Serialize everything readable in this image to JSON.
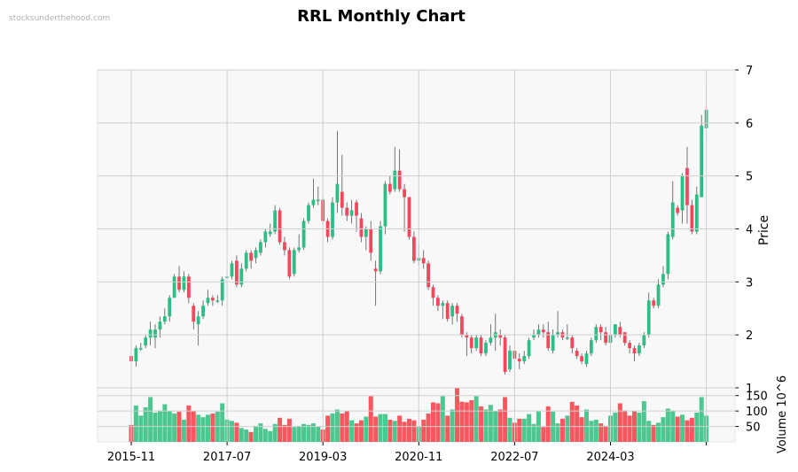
{
  "watermark": "stocksunderthehood.com",
  "chart_data": {
    "type": "candlestick",
    "title": "RRL Monthly Chart",
    "price_axis": {
      "label": "Price",
      "ticks": [
        1,
        2,
        3,
        4,
        5,
        6,
        7
      ],
      "range": [
        1,
        7
      ]
    },
    "volume_axis": {
      "label": "Volume  10^6",
      "ticks": [
        50,
        100,
        150
      ],
      "range": [
        0,
        175
      ]
    },
    "x_ticks": [
      "2015-11",
      "2017-07",
      "2019-03",
      "2020-11",
      "2022-07",
      "2024-03",
      ""
    ],
    "colors": {
      "up": "#2ebd85",
      "down": "#f6465d",
      "volume_up": "#4cc790",
      "volume_down": "#f9575f",
      "grid": "#d0d0d0",
      "bg": "#f8f8f8"
    },
    "months_from": "2015-11",
    "candles": [
      [
        1.6,
        1.5,
        1.65,
        1.45,
        55
      ],
      [
        1.5,
        1.75,
        1.8,
        1.4,
        118
      ],
      [
        1.75,
        1.75,
        1.85,
        1.7,
        85
      ],
      [
        1.8,
        1.95,
        2.0,
        1.75,
        112
      ],
      [
        1.95,
        2.1,
        2.25,
        1.8,
        145
      ],
      [
        1.95,
        2.1,
        2.2,
        1.75,
        95
      ],
      [
        2.1,
        2.25,
        2.35,
        1.95,
        102
      ],
      [
        2.25,
        2.35,
        2.5,
        2.2,
        122
      ],
      [
        2.35,
        2.7,
        2.75,
        2.25,
        100
      ],
      [
        2.7,
        3.1,
        3.15,
        2.7,
        92
      ],
      [
        3.1,
        2.85,
        3.3,
        2.8,
        98
      ],
      [
        2.85,
        3.1,
        3.2,
        2.8,
        72
      ],
      [
        3.1,
        2.7,
        3.15,
        2.6,
        118
      ],
      [
        2.55,
        2.25,
        2.6,
        2.1,
        100
      ],
      [
        2.2,
        2.35,
        2.45,
        1.8,
        88
      ],
      [
        2.35,
        2.55,
        2.65,
        2.3,
        80
      ],
      [
        2.6,
        2.7,
        2.85,
        2.55,
        88
      ],
      [
        2.7,
        2.65,
        2.75,
        2.55,
        92
      ],
      [
        2.65,
        2.65,
        2.75,
        2.6,
        98
      ],
      [
        2.65,
        3.05,
        3.1,
        2.55,
        125
      ],
      [
        3.1,
        3.1,
        3.15,
        3.0,
        72
      ],
      [
        3.1,
        3.35,
        3.4,
        3.05,
        68
      ],
      [
        3.4,
        2.95,
        3.5,
        2.9,
        62
      ],
      [
        2.95,
        3.25,
        3.35,
        2.9,
        45
      ],
      [
        3.25,
        3.55,
        3.6,
        3.2,
        40
      ],
      [
        3.55,
        3.4,
        3.6,
        3.25,
        32
      ],
      [
        3.45,
        3.6,
        3.65,
        3.35,
        52
      ],
      [
        3.55,
        3.75,
        3.8,
        3.5,
        60
      ],
      [
        3.75,
        3.95,
        4.0,
        3.65,
        42
      ],
      [
        3.9,
        3.95,
        4.1,
        3.85,
        35
      ],
      [
        3.95,
        4.35,
        4.45,
        3.9,
        58
      ],
      [
        4.35,
        3.75,
        4.4,
        3.7,
        78
      ],
      [
        3.75,
        3.6,
        3.85,
        3.5,
        55
      ],
      [
        3.6,
        3.1,
        3.65,
        3.05,
        75
      ],
      [
        3.15,
        3.6,
        3.65,
        3.1,
        48
      ],
      [
        3.6,
        3.65,
        3.9,
        3.55,
        52
      ],
      [
        3.65,
        4.15,
        4.2,
        3.6,
        58
      ],
      [
        4.15,
        4.45,
        4.5,
        4.1,
        55
      ],
      [
        4.45,
        4.55,
        4.95,
        4.4,
        60
      ],
      [
        4.55,
        4.55,
        4.8,
        4.45,
        50
      ],
      [
        4.55,
        4.15,
        4.6,
        4.1,
        40
      ],
      [
        4.15,
        3.85,
        4.2,
        3.75,
        85
      ],
      [
        3.85,
        4.5,
        4.6,
        3.8,
        92
      ],
      [
        4.5,
        4.85,
        5.85,
        4.3,
        105
      ],
      [
        4.7,
        4.4,
        5.4,
        4.25,
        92
      ],
      [
        4.4,
        4.25,
        4.5,
        4.15,
        100
      ],
      [
        4.25,
        4.35,
        4.55,
        4.1,
        70
      ],
      [
        4.5,
        4.25,
        4.55,
        3.95,
        60
      ],
      [
        4.2,
        3.85,
        4.3,
        3.75,
        70
      ],
      [
        3.85,
        4.0,
        4.05,
        3.6,
        82
      ],
      [
        4.0,
        3.55,
        4.15,
        3.4,
        148
      ],
      [
        3.25,
        3.2,
        3.4,
        2.55,
        82
      ],
      [
        3.2,
        4.05,
        4.15,
        3.15,
        90
      ],
      [
        4.05,
        4.85,
        4.9,
        3.9,
        90
      ],
      [
        4.85,
        4.7,
        5.0,
        4.65,
        72
      ],
      [
        4.75,
        5.1,
        5.55,
        4.7,
        68
      ],
      [
        5.1,
        4.75,
        5.5,
        4.7,
        85
      ],
      [
        4.75,
        4.6,
        4.85,
        3.95,
        65
      ],
      [
        4.6,
        3.85,
        4.6,
        3.8,
        75
      ],
      [
        3.85,
        3.4,
        3.95,
        3.35,
        70
      ],
      [
        3.4,
        3.45,
        3.7,
        3.3,
        48
      ],
      [
        3.45,
        3.35,
        3.6,
        3.25,
        72
      ],
      [
        3.35,
        2.9,
        3.4,
        2.85,
        92
      ],
      [
        2.9,
        2.7,
        2.95,
        2.55,
        128
      ],
      [
        2.7,
        2.55,
        2.75,
        2.45,
        125
      ],
      [
        2.55,
        2.6,
        2.65,
        2.3,
        148
      ],
      [
        2.6,
        2.3,
        2.65,
        2.25,
        85
      ],
      [
        2.35,
        2.55,
        2.6,
        2.2,
        105
      ],
      [
        2.55,
        2.4,
        2.6,
        2.25,
        175
      ],
      [
        2.35,
        2.0,
        2.4,
        1.95,
        130
      ],
      [
        2.0,
        1.95,
        2.05,
        1.6,
        128
      ],
      [
        1.95,
        1.75,
        2.0,
        1.65,
        135
      ],
      [
        1.75,
        1.95,
        2.0,
        1.7,
        148
      ],
      [
        1.95,
        1.65,
        2.0,
        1.6,
        115
      ],
      [
        1.65,
        1.85,
        1.9,
        1.6,
        105
      ],
      [
        1.85,
        1.95,
        2.2,
        1.8,
        120
      ],
      [
        1.95,
        2.05,
        2.4,
        1.7,
        100
      ],
      [
        2.0,
        1.95,
        2.1,
        1.8,
        105
      ],
      [
        1.95,
        1.3,
        2.0,
        1.25,
        145
      ],
      [
        1.35,
        1.7,
        1.8,
        1.3,
        78
      ],
      [
        1.7,
        1.55,
        1.8,
        1.5,
        62
      ],
      [
        1.55,
        1.5,
        1.65,
        1.35,
        75
      ],
      [
        1.5,
        1.6,
        1.7,
        1.45,
        75
      ],
      [
        1.6,
        1.9,
        1.95,
        1.55,
        90
      ],
      [
        1.95,
        2.0,
        2.1,
        1.9,
        58
      ],
      [
        2.0,
        2.1,
        2.2,
        1.95,
        100
      ],
      [
        2.1,
        2.05,
        2.2,
        1.95,
        48
      ],
      [
        2.05,
        1.75,
        2.25,
        1.7,
        115
      ],
      [
        1.7,
        2.0,
        2.1,
        1.65,
        98
      ],
      [
        2.0,
        2.05,
        2.45,
        1.95,
        60
      ],
      [
        2.05,
        1.95,
        2.1,
        1.9,
        75
      ],
      [
        1.95,
        1.95,
        2.2,
        1.9,
        85
      ],
      [
        1.95,
        1.75,
        2.0,
        1.65,
        130
      ],
      [
        1.7,
        1.6,
        1.75,
        1.55,
        118
      ],
      [
        1.6,
        1.5,
        1.65,
        1.45,
        80
      ],
      [
        1.45,
        1.65,
        1.7,
        1.4,
        105
      ],
      [
        1.65,
        1.9,
        1.95,
        1.6,
        68
      ],
      [
        1.9,
        2.15,
        2.2,
        1.85,
        72
      ],
      [
        2.15,
        2.05,
        2.2,
        1.9,
        60
      ],
      [
        2.05,
        1.85,
        2.15,
        1.8,
        52
      ],
      [
        1.85,
        2.0,
        2.05,
        1.8,
        85
      ],
      [
        2.0,
        2.2,
        2.2,
        1.95,
        95
      ],
      [
        2.15,
        2.0,
        2.25,
        1.95,
        125
      ],
      [
        2.05,
        1.85,
        2.05,
        1.8,
        102
      ],
      [
        1.85,
        1.75,
        1.9,
        1.65,
        85
      ],
      [
        1.75,
        1.65,
        1.8,
        1.5,
        100
      ],
      [
        1.65,
        1.8,
        1.85,
        1.6,
        95
      ],
      [
        1.8,
        2.0,
        2.05,
        1.75,
        132
      ],
      [
        2.0,
        2.65,
        2.8,
        1.95,
        68
      ],
      [
        2.65,
        2.55,
        2.7,
        2.5,
        55
      ],
      [
        2.55,
        2.95,
        3.05,
        2.5,
        62
      ],
      [
        2.95,
        3.15,
        3.3,
        2.9,
        80
      ],
      [
        3.15,
        3.9,
        3.95,
        3.05,
        108
      ],
      [
        3.85,
        4.5,
        4.9,
        3.8,
        102
      ],
      [
        4.4,
        4.3,
        4.45,
        4.25,
        82
      ],
      [
        4.35,
        5.0,
        5.05,
        4.1,
        88
      ],
      [
        5.15,
        4.45,
        5.55,
        4.1,
        70
      ],
      [
        4.45,
        3.95,
        4.55,
        3.9,
        78
      ],
      [
        3.95,
        4.65,
        4.8,
        3.9,
        95
      ],
      [
        4.6,
        5.95,
        6.15,
        4.6,
        145
      ],
      [
        5.9,
        6.25,
        6.7,
        5.65,
        85
      ]
    ]
  }
}
